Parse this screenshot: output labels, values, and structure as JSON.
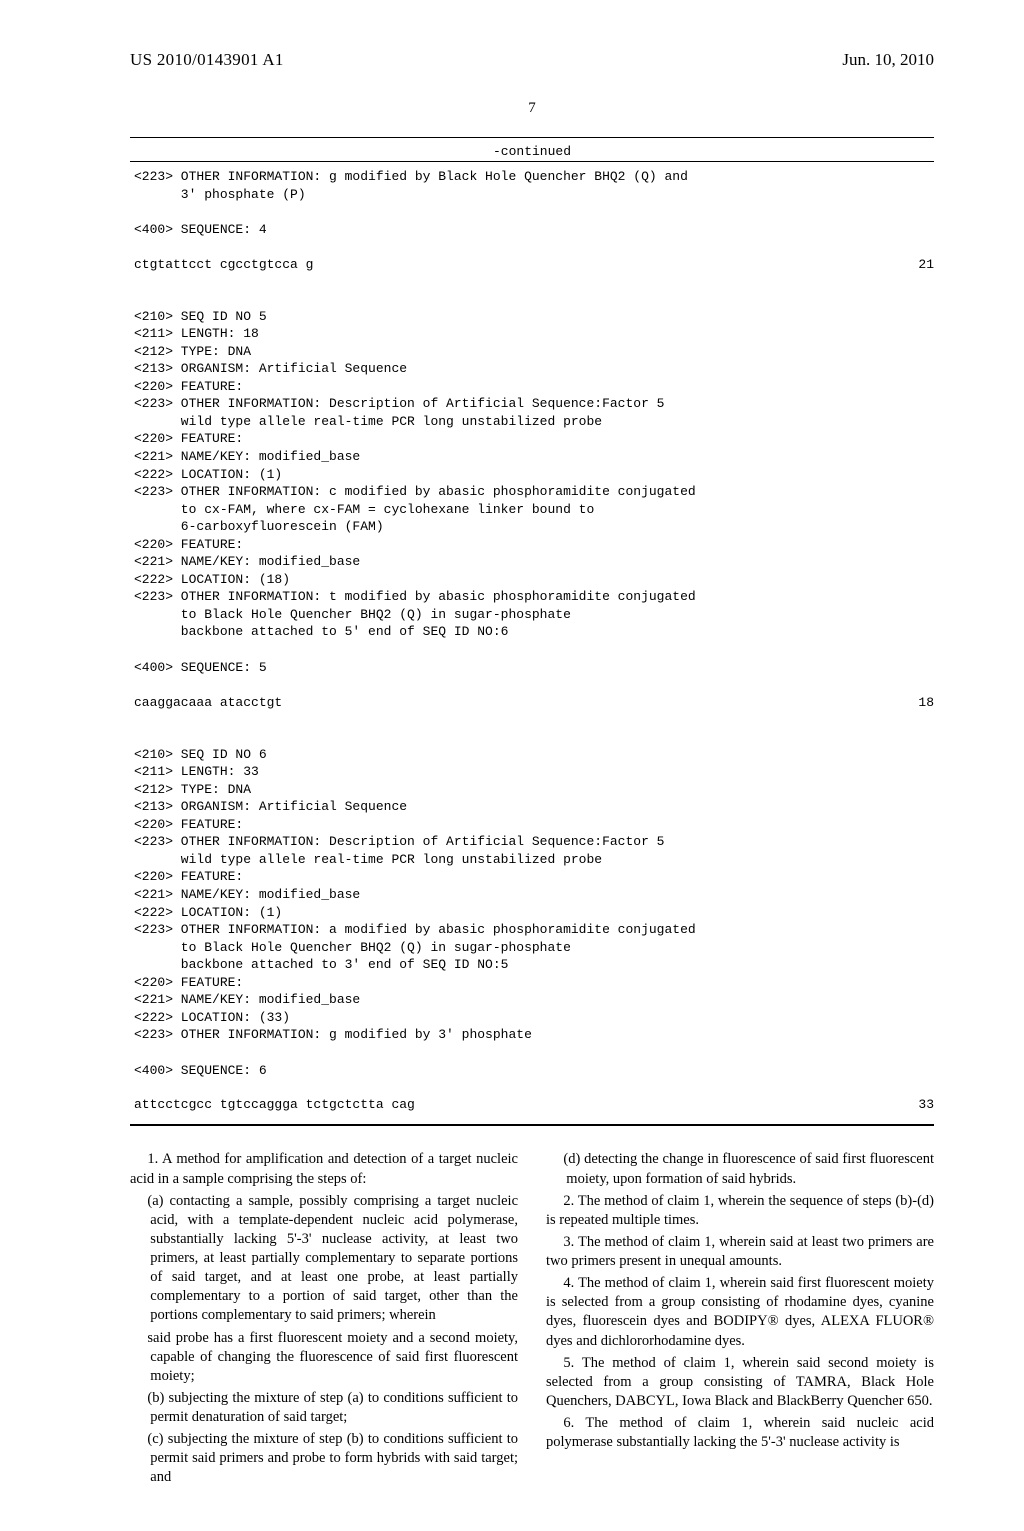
{
  "header": {
    "patent_number": "US 2010/0143901 A1",
    "date": "Jun. 10, 2010"
  },
  "page_number": "7",
  "continued_label": "-continued",
  "seq4": {
    "info": "<223> OTHER INFORMATION: g modified by Black Hole Quencher BHQ2 (Q) and\n      3' phosphate (P)",
    "seq_label": "<400> SEQUENCE: 4",
    "seq": "ctgtattcct cgcctgtcca g",
    "count": "21"
  },
  "seq5": {
    "meta": "<210> SEQ ID NO 5\n<211> LENGTH: 18\n<212> TYPE: DNA\n<213> ORGANISM: Artificial Sequence\n<220> FEATURE:\n<223> OTHER INFORMATION: Description of Artificial Sequence:Factor 5\n      wild type allele real-time PCR long unstabilized probe\n<220> FEATURE:\n<221> NAME/KEY: modified_base\n<222> LOCATION: (1)\n<223> OTHER INFORMATION: c modified by abasic phosphoramidite conjugated\n      to cx-FAM, where cx-FAM = cyclohexane linker bound to\n      6-carboxyfluorescein (FAM)\n<220> FEATURE:\n<221> NAME/KEY: modified_base\n<222> LOCATION: (18)\n<223> OTHER INFORMATION: t modified by abasic phosphoramidite conjugated\n      to Black Hole Quencher BHQ2 (Q) in sugar-phosphate\n      backbone attached to 5' end of SEQ ID NO:6",
    "seq_label": "<400> SEQUENCE: 5",
    "seq": "caaggacaaa atacctgt",
    "count": "18"
  },
  "seq6": {
    "meta": "<210> SEQ ID NO 6\n<211> LENGTH: 33\n<212> TYPE: DNA\n<213> ORGANISM: Artificial Sequence\n<220> FEATURE:\n<223> OTHER INFORMATION: Description of Artificial Sequence:Factor 5\n      wild type allele real-time PCR long unstabilized probe\n<220> FEATURE:\n<221> NAME/KEY: modified_base\n<222> LOCATION: (1)\n<223> OTHER INFORMATION: a modified by abasic phosphoramidite conjugated\n      to Black Hole Quencher BHQ2 (Q) in sugar-phosphate\n      backbone attached to 3' end of SEQ ID NO:5\n<220> FEATURE:\n<221> NAME/KEY: modified_base\n<222> LOCATION: (33)\n<223> OTHER INFORMATION: g modified by 3' phosphate",
    "seq_label": "<400> SEQUENCE: 6",
    "seq": "attcctcgcc tgtccaggga tctgctctta cag",
    "count": "33"
  },
  "claims_left": [
    "1. A method for amplification and detection of a target nucleic acid in a sample comprising the steps of:",
    "(a) contacting a sample, possibly comprising a target nucleic acid, with a template-dependent nucleic acid polymerase, substantially lacking 5'-3' nuclease activity, at least two primers, at least partially complementary to separate portions of said target, and at least one probe, at least partially complementary to a portion of said target, other than the portions complementary to said primers; wherein",
    "said probe has a first fluorescent moiety and a second moiety, capable of changing the fluorescence of said first fluorescent moiety;",
    "(b) subjecting the mixture of step (a) to conditions sufficient to permit denaturation of said target;",
    "(c) subjecting the mixture of step (b) to conditions sufficient to permit said primers and probe to form hybrids with said target; and"
  ],
  "claims_right": [
    "(d) detecting the change in fluorescence of said first fluorescent moiety, upon formation of said hybrids.",
    "2. The method of claim 1, wherein the sequence of steps (b)-(d) is repeated multiple times.",
    "3. The method of claim 1, wherein said at least two primers are two primers present in unequal amounts.",
    "4. The method of claim 1, wherein said first fluorescent moiety is selected from a group consisting of rhodamine dyes, cyanine dyes, fluorescein dyes and BODIPY® dyes, ALEXA FLUOR® dyes and dichlororhodamine dyes.",
    "5. The method of claim 1, wherein said second moiety is selected from a group consisting of TAMRA, Black Hole Quenchers, DABCYL, Iowa Black and BlackBerry Quencher 650.",
    "6. The method of claim 1, wherein said nucleic acid polymerase substantially lacking the 5'-3' nuclease activity is"
  ]
}
